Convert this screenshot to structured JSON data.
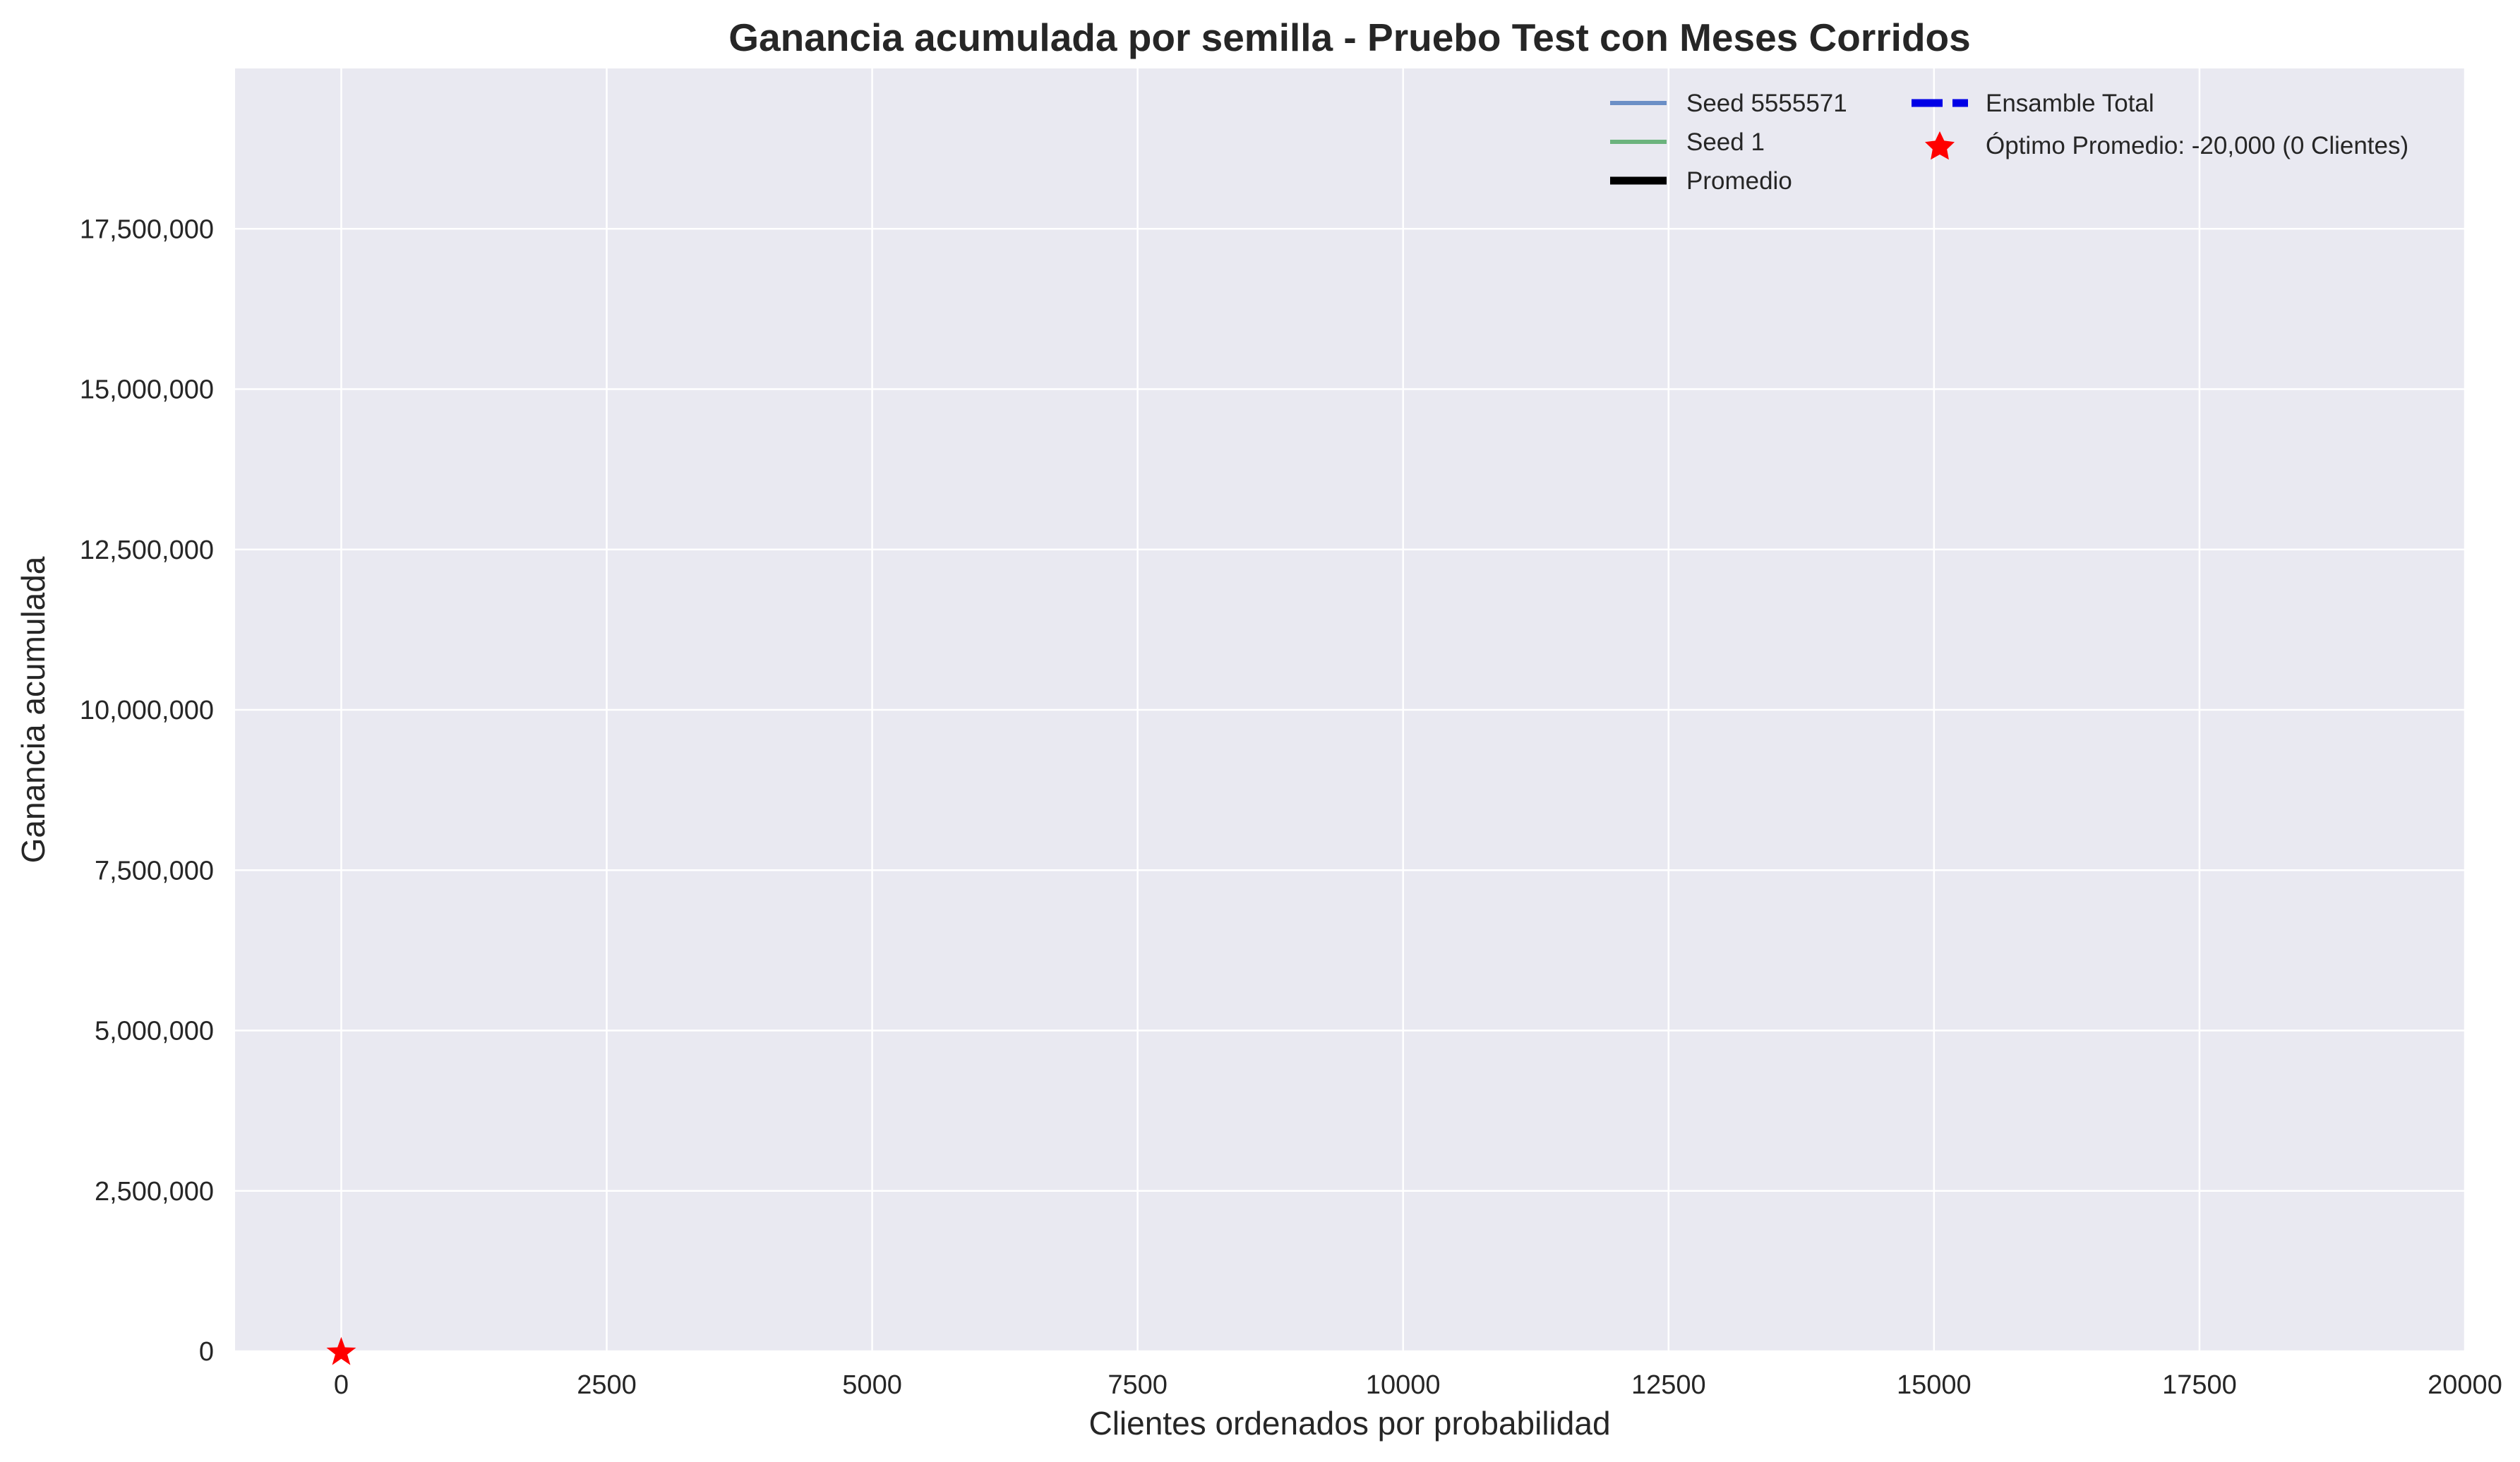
{
  "chart_data": {
    "type": "line",
    "title": "Ganancia acumulada por semilla - Pruebo Test con Meses Corridos",
    "xlabel": "Clientes ordenados por probabilidad",
    "ylabel": "Ganancia acumulada",
    "xlim": [
      -1000,
      20000
    ],
    "ylim": [
      0,
      20000000
    ],
    "x_ticks": [
      0,
      2500,
      5000,
      7500,
      10000,
      12500,
      15000,
      17500,
      20000
    ],
    "x_tick_labels": [
      "0",
      "2500",
      "5000",
      "7500",
      "10000",
      "12500",
      "15000",
      "17500",
      "20000"
    ],
    "y_ticks": [
      0,
      2500000,
      5000000,
      7500000,
      10000000,
      12500000,
      15000000,
      17500000
    ],
    "y_tick_labels": [
      "0",
      "2,500,000",
      "5,000,000",
      "7,500,000",
      "10,000,000",
      "12,500,000",
      "15,000,000",
      "17,500,000"
    ],
    "grid": true,
    "legend_position": "upper right",
    "series": [
      {
        "name": "Seed 5555571",
        "color": "#6b8fc6",
        "style": "solid",
        "x": [
          0
        ],
        "y": [
          -20000
        ]
      },
      {
        "name": "Seed 1",
        "color": "#6bb37d",
        "style": "solid",
        "x": [
          0
        ],
        "y": [
          -20000
        ]
      },
      {
        "name": "Promedio",
        "color": "#000000",
        "style": "solid-thick",
        "x": [
          0
        ],
        "y": [
          -20000
        ]
      },
      {
        "name": "Ensamble Total",
        "color": "#0000e6",
        "style": "dashed-thick",
        "x": [
          0
        ],
        "y": [
          -20000
        ]
      }
    ],
    "optimum": {
      "label": "Óptimo Promedio: -20,000 (0 Clientes)",
      "x": 0,
      "y": -20000,
      "color": "#ff0000",
      "marker": "star"
    }
  }
}
